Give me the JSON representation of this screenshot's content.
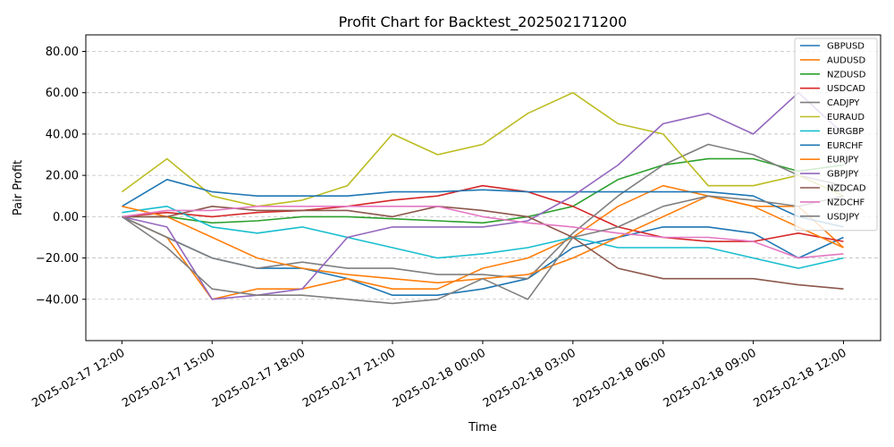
{
  "chart_data": {
    "type": "line",
    "title": "Profit Chart for Backtest_202502171200",
    "xlabel": "Time",
    "ylabel": "Pair Profit",
    "xlim": [
      "2025-02-17 10:48",
      "2025-02-18 13:14"
    ],
    "ylim": [
      -60,
      88
    ],
    "grid": "y-dashed",
    "legend_position": "top-right",
    "x_ticks": [
      "2025-02-17 12:00",
      "2025-02-17 15:00",
      "2025-02-17 18:00",
      "2025-02-17 21:00",
      "2025-02-18 00:00",
      "2025-02-18 03:00",
      "2025-02-18 06:00",
      "2025-02-18 09:00",
      "2025-02-18 12:00"
    ],
    "y_ticks": [
      -40,
      -20,
      0,
      20,
      40,
      60,
      80
    ],
    "y_tick_labels": [
      "−40.00",
      "−20.00",
      "0.00",
      "20.00",
      "40.00",
      "60.00",
      "80.00"
    ],
    "series": [
      {
        "name": "GBPUSD",
        "color": "#1f77b4",
        "x": [
          "2025-02-17 12:00",
          "2025-02-17 13:30",
          "2025-02-17 15:00",
          "2025-02-17 16:30",
          "2025-02-17 18:00",
          "2025-02-17 19:30",
          "2025-02-17 21:00",
          "2025-02-17 22:30",
          "2025-02-18 00:00",
          "2025-02-18 01:30",
          "2025-02-18 03:00",
          "2025-02-18 04:30",
          "2025-02-18 06:00",
          "2025-02-18 07:30",
          "2025-02-18 09:00",
          "2025-02-18 10:30",
          "2025-02-18 12:00"
        ],
        "y": [
          0,
          -10,
          -20,
          -25,
          -25,
          -30,
          -38,
          -38,
          -35,
          -30,
          -15,
          -10,
          -5,
          -5,
          -8,
          -20,
          -10
        ]
      },
      {
        "name": "AUDUSD",
        "color": "#ff7f0e",
        "x": [
          "2025-02-17 12:00",
          "2025-02-17 13:30",
          "2025-02-17 15:00",
          "2025-02-17 16:30",
          "2025-02-17 18:00",
          "2025-02-17 19:30",
          "2025-02-17 21:00",
          "2025-02-17 22:30",
          "2025-02-18 00:00",
          "2025-02-18 01:30",
          "2025-02-18 03:00",
          "2025-02-18 04:30",
          "2025-02-18 06:00",
          "2025-02-18 07:30",
          "2025-02-18 09:00",
          "2025-02-18 10:30",
          "2025-02-18 12:00"
        ],
        "y": [
          0,
          -10,
          -40,
          -35,
          -35,
          -30,
          -35,
          -35,
          -25,
          -20,
          -10,
          5,
          15,
          10,
          5,
          5,
          -15
        ]
      },
      {
        "name": "NZDUSD",
        "color": "#2ca02c",
        "x": [
          "2025-02-17 12:00",
          "2025-02-17 13:30",
          "2025-02-17 15:00",
          "2025-02-17 16:30",
          "2025-02-17 18:00",
          "2025-02-17 19:30",
          "2025-02-17 21:00",
          "2025-02-17 22:30",
          "2025-02-18 00:00",
          "2025-02-18 01:30",
          "2025-02-18 03:00",
          "2025-02-18 04:30",
          "2025-02-18 06:00",
          "2025-02-18 07:30",
          "2025-02-18 09:00",
          "2025-02-18 10:30",
          "2025-02-18 12:00"
        ],
        "y": [
          0,
          0,
          -3,
          -2,
          0,
          0,
          -1,
          -2,
          -3,
          0,
          5,
          18,
          25,
          28,
          28,
          22,
          25
        ]
      },
      {
        "name": "USDCAD",
        "color": "#d62728",
        "x": [
          "2025-02-17 12:00",
          "2025-02-17 13:30",
          "2025-02-17 15:00",
          "2025-02-17 16:30",
          "2025-02-17 18:00",
          "2025-02-17 19:30",
          "2025-02-17 21:00",
          "2025-02-17 22:30",
          "2025-02-18 00:00",
          "2025-02-18 01:30",
          "2025-02-18 03:00",
          "2025-02-18 04:30",
          "2025-02-18 06:00",
          "2025-02-18 07:30",
          "2025-02-18 09:00",
          "2025-02-18 10:30",
          "2025-02-18 12:00"
        ],
        "y": [
          0,
          2,
          0,
          2,
          3,
          5,
          8,
          10,
          15,
          12,
          5,
          -5,
          -10,
          -12,
          -12,
          -8,
          -12
        ]
      },
      {
        "name": "CADJPY",
        "color": "#7f7f7f",
        "x": [
          "2025-02-17 12:00",
          "2025-02-17 13:30",
          "2025-02-17 15:00",
          "2025-02-17 16:30",
          "2025-02-17 18:00",
          "2025-02-17 19:30",
          "2025-02-17 21:00",
          "2025-02-17 22:30",
          "2025-02-18 00:00",
          "2025-02-18 01:30",
          "2025-02-18 03:00",
          "2025-02-18 04:30",
          "2025-02-18 06:00",
          "2025-02-18 07:30",
          "2025-02-18 09:00",
          "2025-02-18 10:30",
          "2025-02-18 12:00"
        ],
        "y": [
          0,
          -10,
          -20,
          -25,
          -22,
          -25,
          -25,
          -28,
          -28,
          -30,
          -8,
          10,
          25,
          35,
          30,
          20,
          15
        ]
      },
      {
        "name": "EURAUD",
        "color": "#bcbd22",
        "x": [
          "2025-02-17 12:00",
          "2025-02-17 13:30",
          "2025-02-17 15:00",
          "2025-02-17 16:30",
          "2025-02-17 18:00",
          "2025-02-17 19:30",
          "2025-02-17 21:00",
          "2025-02-17 22:30",
          "2025-02-18 00:00",
          "2025-02-18 01:30",
          "2025-02-18 03:00",
          "2025-02-18 04:30",
          "2025-02-18 06:00",
          "2025-02-18 07:30",
          "2025-02-18 09:00",
          "2025-02-18 10:30",
          "2025-02-18 12:00"
        ],
        "y": [
          12,
          28,
          10,
          5,
          8,
          15,
          40,
          30,
          35,
          50,
          60,
          45,
          40,
          15,
          15,
          20,
          10
        ]
      },
      {
        "name": "EURGBP",
        "color": "#17becf",
        "x": [
          "2025-02-17 12:00",
          "2025-02-17 13:30",
          "2025-02-17 15:00",
          "2025-02-17 16:30",
          "2025-02-17 18:00",
          "2025-02-17 19:30",
          "2025-02-17 21:00",
          "2025-02-17 22:30",
          "2025-02-18 00:00",
          "2025-02-18 01:30",
          "2025-02-18 03:00",
          "2025-02-18 04:30",
          "2025-02-18 06:00",
          "2025-02-18 07:30",
          "2025-02-18 09:00",
          "2025-02-18 10:30",
          "2025-02-18 12:00"
        ],
        "y": [
          2,
          5,
          -5,
          -8,
          -5,
          -10,
          -15,
          -20,
          -18,
          -15,
          -10,
          -15,
          -15,
          -15,
          -20,
          -25,
          -20
        ]
      },
      {
        "name": "EURCHF",
        "color": "#1f77b4",
        "x": [
          "2025-02-17 12:00",
          "2025-02-17 13:30",
          "2025-02-17 15:00",
          "2025-02-17 16:30",
          "2025-02-17 18:00",
          "2025-02-17 19:30",
          "2025-02-17 21:00",
          "2025-02-17 22:30",
          "2025-02-18 00:00",
          "2025-02-18 01:30",
          "2025-02-18 03:00",
          "2025-02-18 04:30",
          "2025-02-18 06:00",
          "2025-02-18 07:30",
          "2025-02-18 09:00",
          "2025-02-18 10:30",
          "2025-02-18 12:00"
        ],
        "y": [
          5,
          18,
          12,
          10,
          10,
          10,
          12,
          12,
          13,
          12,
          12,
          12,
          12,
          12,
          10,
          0,
          -5
        ]
      },
      {
        "name": "EURJPY",
        "color": "#ff7f0e",
        "x": [
          "2025-02-17 12:00",
          "2025-02-17 13:30",
          "2025-02-17 15:00",
          "2025-02-17 16:30",
          "2025-02-17 18:00",
          "2025-02-17 19:30",
          "2025-02-17 21:00",
          "2025-02-17 22:30",
          "2025-02-18 00:00",
          "2025-02-18 01:30",
          "2025-02-18 03:00",
          "2025-02-18 04:30",
          "2025-02-18 06:00",
          "2025-02-18 07:30",
          "2025-02-18 09:00",
          "2025-02-18 10:30",
          "2025-02-18 12:00"
        ],
        "y": [
          5,
          0,
          -10,
          -20,
          -25,
          -28,
          -30,
          -32,
          -30,
          -28,
          -20,
          -10,
          0,
          10,
          5,
          -5,
          -15
        ]
      },
      {
        "name": "GBPJPY",
        "color": "#9467bd",
        "x": [
          "2025-02-17 12:00",
          "2025-02-17 13:30",
          "2025-02-17 15:00",
          "2025-02-17 16:30",
          "2025-02-17 18:00",
          "2025-02-17 19:30",
          "2025-02-17 21:00",
          "2025-02-17 22:30",
          "2025-02-18 00:00",
          "2025-02-18 01:30",
          "2025-02-18 03:00",
          "2025-02-18 04:30",
          "2025-02-18 06:00",
          "2025-02-18 07:30",
          "2025-02-18 09:00",
          "2025-02-18 10:30",
          "2025-02-18 12:00"
        ],
        "y": [
          0,
          -5,
          -40,
          -38,
          -35,
          -10,
          -5,
          -5,
          -5,
          -2,
          10,
          25,
          45,
          50,
          40,
          60,
          40
        ]
      },
      {
        "name": "NZDCAD",
        "color": "#8c564b",
        "x": [
          "2025-02-17 12:00",
          "2025-02-17 13:30",
          "2025-02-17 15:00",
          "2025-02-17 16:30",
          "2025-02-17 18:00",
          "2025-02-17 19:30",
          "2025-02-17 21:00",
          "2025-02-17 22:30",
          "2025-02-18 00:00",
          "2025-02-18 01:30",
          "2025-02-18 03:00",
          "2025-02-18 04:30",
          "2025-02-18 06:00",
          "2025-02-18 07:30",
          "2025-02-18 09:00",
          "2025-02-18 10:30",
          "2025-02-18 12:00"
        ],
        "y": [
          0,
          0,
          5,
          3,
          3,
          3,
          0,
          5,
          3,
          0,
          -10,
          -25,
          -30,
          -30,
          -30,
          -33,
          -35
        ]
      },
      {
        "name": "NZDCHF",
        "color": "#e377c2",
        "x": [
          "2025-02-17 12:00",
          "2025-02-17 13:30",
          "2025-02-17 15:00",
          "2025-02-17 16:30",
          "2025-02-17 18:00",
          "2025-02-17 19:30",
          "2025-02-17 21:00",
          "2025-02-17 22:30",
          "2025-02-18 00:00",
          "2025-02-18 01:30",
          "2025-02-18 03:00",
          "2025-02-18 04:30",
          "2025-02-18 06:00",
          "2025-02-18 07:30",
          "2025-02-18 09:00",
          "2025-02-18 10:30",
          "2025-02-18 12:00"
        ],
        "y": [
          0,
          3,
          3,
          5,
          5,
          5,
          5,
          5,
          0,
          -3,
          -5,
          -8,
          -10,
          -10,
          -12,
          -20,
          -18
        ]
      },
      {
        "name": "USDJPY",
        "color": "#7f7f7f",
        "x": [
          "2025-02-17 12:00",
          "2025-02-17 13:30",
          "2025-02-17 15:00",
          "2025-02-17 16:30",
          "2025-02-17 18:00",
          "2025-02-17 19:30",
          "2025-02-17 21:00",
          "2025-02-17 22:30",
          "2025-02-18 00:00",
          "2025-02-18 01:30",
          "2025-02-18 03:00",
          "2025-02-18 04:30",
          "2025-02-18 06:00",
          "2025-02-18 07:30",
          "2025-02-18 09:00",
          "2025-02-18 10:30",
          "2025-02-18 12:00"
        ],
        "y": [
          0,
          -15,
          -35,
          -38,
          -38,
          -40,
          -42,
          -40,
          -30,
          -40,
          -10,
          -5,
          5,
          10,
          8,
          5,
          10
        ]
      }
    ]
  }
}
